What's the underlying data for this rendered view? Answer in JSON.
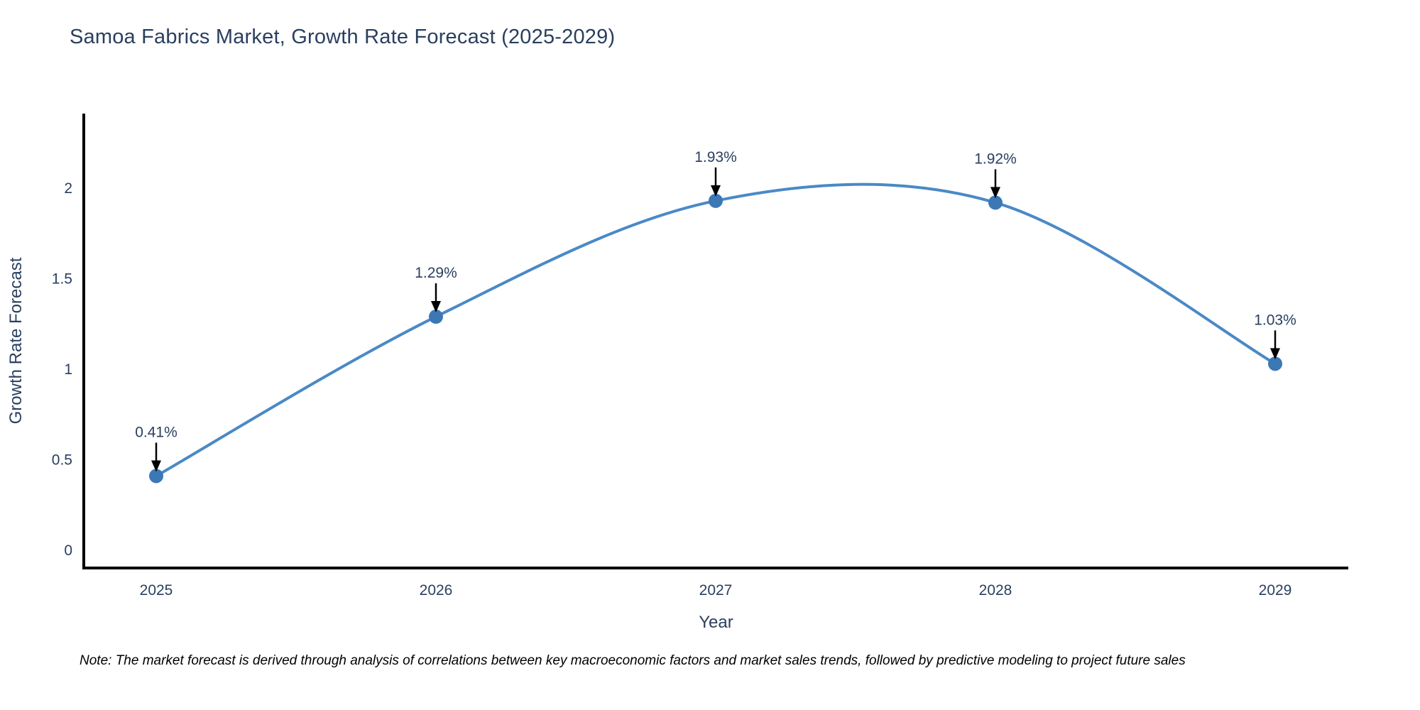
{
  "chart": {
    "title_color": "#2a3f5f",
    "tick_color": "#2a3f5f",
    "axis_line_color": "#000000",
    "background_color": "#ffffff"
  },
  "footnote": "Note: The market forecast is derived through analysis of correlations between key macroeconomic factors and market sales trends, followed by predictive modeling to project future sales",
  "chart_data": {
    "type": "line",
    "title": "Samoa Fabrics Market, Growth Rate Forecast (2025-2029)",
    "x": [
      2025,
      2026,
      2027,
      2028,
      2029
    ],
    "x_tick_labels": [
      "2025",
      "2026",
      "2027",
      "2028",
      "2029"
    ],
    "series": [
      {
        "name": "Growth Rate Forecast",
        "values": [
          0.41,
          1.29,
          1.93,
          1.92,
          1.03
        ],
        "point_labels": [
          "0.41%",
          "1.29%",
          "1.93%",
          "1.92%",
          "1.03%"
        ]
      }
    ],
    "xlabel": "Year",
    "ylabel": "Growth Rate Forecast",
    "y_ticks": [
      0,
      0.5,
      1,
      1.5,
      2
    ],
    "y_tick_labels": [
      "0",
      "0.5",
      "1",
      "1.5",
      "2"
    ],
    "ylim": [
      -0.1,
      2.41
    ],
    "line_shape": "spline",
    "grid": false,
    "legend_position": "none",
    "line_color": "#4a89c6",
    "marker_color": "#3c78b4",
    "annotation_color": "#2a3f5f",
    "arrow_color": "#000000"
  }
}
